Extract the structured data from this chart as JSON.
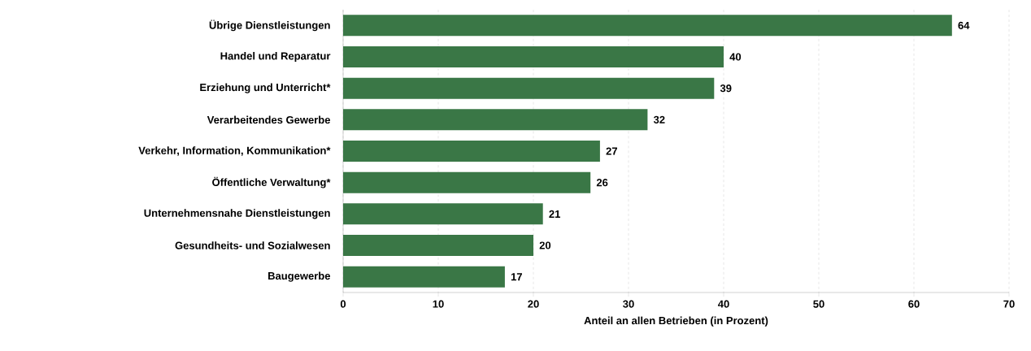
{
  "chart_data": {
    "type": "bar",
    "orientation": "horizontal",
    "xlabel": "Anteil an allen Betrieben (in Prozent)",
    "categories": [
      "Übrige Dienstleistungen",
      "Handel und Reparatur",
      "Erziehung und Unterricht*",
      "Verarbeitendes Gewerbe",
      "Verkehr, Information, Kommunikation*",
      "Öffentliche Verwaltung*",
      "Unternehmensnahe Dienstleistungen",
      "Gesundheits- und Sozialwesen",
      "Baugewerbe"
    ],
    "values": [
      64,
      40,
      39,
      32,
      27,
      26,
      21,
      20,
      17
    ],
    "color": "#3a7746",
    "data_labels": true,
    "grid": "x",
    "xlim": [
      0,
      70
    ],
    "xticks": [
      0,
      10,
      20,
      30,
      40,
      50,
      60,
      70
    ]
  }
}
